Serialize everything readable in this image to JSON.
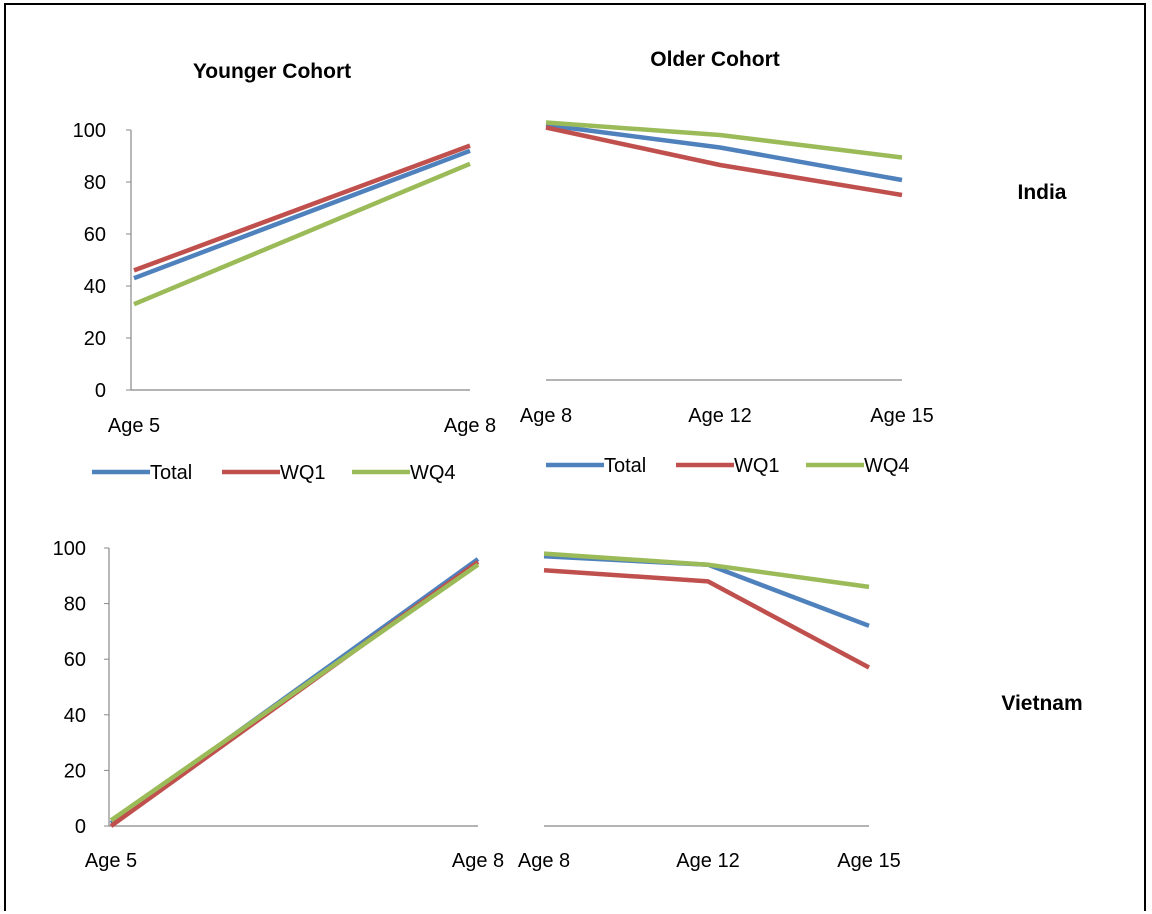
{
  "col_titles": {
    "younger": "Younger Cohort",
    "older": "Older Cohort"
  },
  "row_labels": {
    "india": "India",
    "vietnam": "Vietnam"
  },
  "colors": {
    "Total": "#4f81bd",
    "WQ1": "#c0504d",
    "WQ4": "#9bbb59",
    "axis": "#888888"
  },
  "chart_data": [
    {
      "type": "line",
      "title": "Younger Cohort",
      "row": "India",
      "categories": [
        "Age 5",
        "Age 8"
      ],
      "ylim": [
        0,
        100
      ],
      "yticks": [
        "0",
        "20",
        "40",
        "60",
        "80",
        "100"
      ],
      "legend": "bottom",
      "series": [
        {
          "name": "Total",
          "values": [
            43,
            92
          ]
        },
        {
          "name": "WQ1",
          "values": [
            46,
            94
          ]
        },
        {
          "name": "WQ4",
          "values": [
            33,
            87
          ]
        }
      ]
    },
    {
      "type": "line",
      "title": "Older Cohort",
      "row": "India",
      "categories": [
        "Age 8",
        "Age 12",
        "Age 15"
      ],
      "ylim": [
        0,
        100
      ],
      "legend": "bottom",
      "series": [
        {
          "name": "Total",
          "values": [
            102,
            93,
            80
          ]
        },
        {
          "name": "WQ1",
          "values": [
            101,
            86,
            74
          ]
        },
        {
          "name": "WQ4",
          "values": [
            103,
            98,
            89
          ]
        }
      ]
    },
    {
      "type": "line",
      "row": "Vietnam",
      "categories": [
        "Age 5",
        "Age 8"
      ],
      "ylim": [
        0,
        100
      ],
      "yticks": [
        "0",
        "20",
        "40",
        "60",
        "80",
        "100"
      ],
      "series": [
        {
          "name": "Total",
          "values": [
            1,
            96
          ]
        },
        {
          "name": "WQ1",
          "values": [
            0,
            95
          ]
        },
        {
          "name": "WQ4",
          "values": [
            2,
            94
          ]
        }
      ]
    },
    {
      "type": "line",
      "row": "Vietnam",
      "categories": [
        "Age 8",
        "Age 12",
        "Age 15"
      ],
      "ylim": [
        0,
        100
      ],
      "series": [
        {
          "name": "Total",
          "values": [
            97,
            94,
            72
          ]
        },
        {
          "name": "WQ1",
          "values": [
            92,
            88,
            57
          ]
        },
        {
          "name": "WQ4",
          "values": [
            98,
            94,
            86
          ]
        }
      ]
    }
  ]
}
